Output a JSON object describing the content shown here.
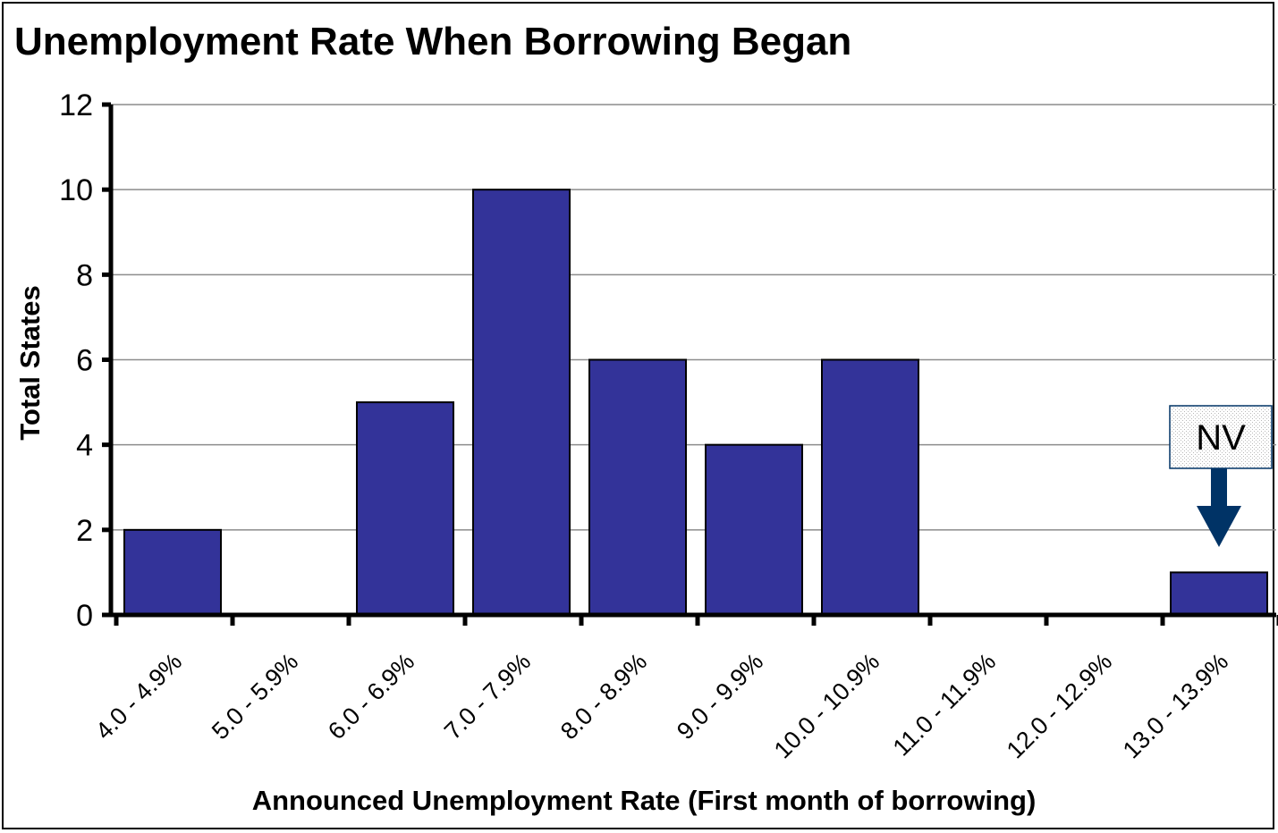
{
  "chart_data": {
    "type": "bar",
    "title": "Unemployment Rate When Borrowing Began",
    "xlabel": "Announced Unemployment Rate (First month of borrowing)",
    "ylabel": "Total States",
    "categories": [
      "4.0 - 4.9%",
      "5.0 - 5.9%",
      "6.0 - 6.9%",
      "7.0 - 7.9%",
      "8.0 - 8.9%",
      "9.0 - 9.9%",
      "10.0 - 10.9%",
      "11.0 - 11.9%",
      "12.0 - 12.9%",
      "13.0 - 13.9%"
    ],
    "values": [
      2,
      0,
      5,
      10,
      6,
      4,
      6,
      0,
      0,
      1
    ],
    "ylim": [
      0,
      12
    ],
    "yticks": [
      0,
      2,
      4,
      6,
      8,
      10,
      12
    ],
    "grid": true,
    "legend": "none",
    "bar_color": "#333399",
    "annotation": {
      "text": "NV",
      "category": "13.0 - 13.9%",
      "arrow_color": "#003366"
    }
  }
}
